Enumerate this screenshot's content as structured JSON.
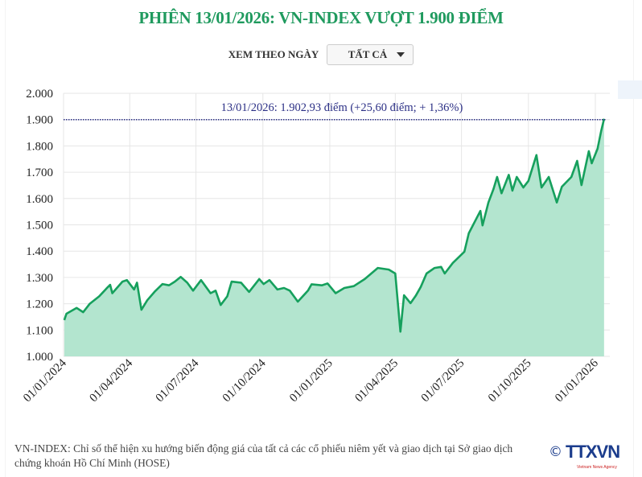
{
  "title": "PHIÊN 13/01/2026: VN-INDEX VƯỢT 1.900 ĐIỂM",
  "filter": {
    "label": "XEM THEO NGÀY",
    "selected": "TẤT CẢ"
  },
  "footnote": "VN-INDEX: Chỉ số thể hiện xu hướng biến động giá của tất cả các cổ phiếu niêm yết và giao dịch tại Sở giao dịch chứng khoán Hồ Chí Minh (HOSE)",
  "logo": {
    "copyright": "©",
    "text": "TTXVN",
    "tagline": "Vietnam News Agency"
  },
  "colors": {
    "title": "#1f9a5e",
    "line": "#16a05d",
    "fill": "#b3e5cf",
    "reference": "#2b2f85"
  },
  "chart_data": {
    "type": "area",
    "ylim": [
      1000,
      2000
    ],
    "yticks": [
      "1.000",
      "1.100",
      "1.200",
      "1.300",
      "1.400",
      "1.500",
      "1.600",
      "1.700",
      "1.800",
      "1.900",
      "2.000"
    ],
    "ytick_values": [
      1000,
      1100,
      1200,
      1300,
      1400,
      1500,
      1600,
      1700,
      1800,
      1900,
      2000
    ],
    "xlim": [
      "2024-01-01",
      "2026-01-01"
    ],
    "xticks": [
      "01/01/2024",
      "01/04/2024",
      "01/07/2024",
      "01/10/2024",
      "01/01/2025",
      "01/04/2025",
      "01/07/2025",
      "01/10/2025",
      "01/01/2026"
    ],
    "xtick_dates": [
      "2024-01-01",
      "2024-04-01",
      "2024-07-01",
      "2024-10-01",
      "2025-01-01",
      "2025-04-01",
      "2025-07-01",
      "2025-10-01",
      "2026-01-01"
    ],
    "grid": true,
    "reference_line": {
      "value": 1900,
      "label": "13/01/2026: 1.902,93 điểm (+25,60 điểm; + 1,36%)"
    },
    "series": [
      {
        "points": [
          [
            "2024-01-02",
            1138
          ],
          [
            "2024-01-05",
            1162
          ],
          [
            "2024-01-19",
            1184
          ],
          [
            "2024-01-28",
            1168
          ],
          [
            "2024-02-06",
            1200
          ],
          [
            "2024-02-19",
            1228
          ],
          [
            "2024-02-29",
            1258
          ],
          [
            "2024-03-05",
            1272
          ],
          [
            "2024-03-08",
            1240
          ],
          [
            "2024-03-22",
            1284
          ],
          [
            "2024-03-28",
            1290
          ],
          [
            "2024-04-07",
            1254
          ],
          [
            "2024-04-11",
            1280
          ],
          [
            "2024-04-17",
            1177
          ],
          [
            "2024-04-25",
            1213
          ],
          [
            "2024-05-06",
            1248
          ],
          [
            "2024-05-16",
            1275
          ],
          [
            "2024-05-25",
            1270
          ],
          [
            "2024-06-02",
            1284
          ],
          [
            "2024-06-10",
            1302
          ],
          [
            "2024-06-19",
            1280
          ],
          [
            "2024-06-27",
            1250
          ],
          [
            "2024-07-08",
            1290
          ],
          [
            "2024-07-21",
            1240
          ],
          [
            "2024-07-28",
            1250
          ],
          [
            "2024-08-04",
            1195
          ],
          [
            "2024-08-13",
            1228
          ],
          [
            "2024-08-19",
            1284
          ],
          [
            "2024-09-01",
            1280
          ],
          [
            "2024-09-12",
            1245
          ],
          [
            "2024-09-26",
            1294
          ],
          [
            "2024-10-02",
            1275
          ],
          [
            "2024-10-10",
            1290
          ],
          [
            "2024-10-21",
            1254
          ],
          [
            "2024-10-30",
            1260
          ],
          [
            "2024-11-07",
            1250
          ],
          [
            "2024-11-18",
            1208
          ],
          [
            "2024-12-02",
            1250
          ],
          [
            "2024-12-07",
            1274
          ],
          [
            "2024-12-21",
            1270
          ],
          [
            "2024-12-29",
            1277
          ],
          [
            "2025-01-09",
            1240
          ],
          [
            "2025-01-21",
            1260
          ],
          [
            "2025-02-03",
            1267
          ],
          [
            "2025-02-18",
            1294
          ],
          [
            "2025-03-08",
            1336
          ],
          [
            "2025-03-23",
            1330
          ],
          [
            "2025-04-01",
            1315
          ],
          [
            "2025-04-08",
            1094
          ],
          [
            "2025-04-13",
            1232
          ],
          [
            "2025-04-22",
            1202
          ],
          [
            "2025-04-29",
            1230
          ],
          [
            "2025-05-06",
            1264
          ],
          [
            "2025-05-14",
            1315
          ],
          [
            "2025-05-25",
            1336
          ],
          [
            "2025-06-03",
            1340
          ],
          [
            "2025-06-08",
            1315
          ],
          [
            "2025-06-19",
            1355
          ],
          [
            "2025-07-05",
            1398
          ],
          [
            "2025-07-11",
            1468
          ],
          [
            "2025-07-27",
            1553
          ],
          [
            "2025-07-30",
            1498
          ],
          [
            "2025-08-07",
            1585
          ],
          [
            "2025-08-14",
            1636
          ],
          [
            "2025-08-19",
            1682
          ],
          [
            "2025-08-25",
            1620
          ],
          [
            "2025-09-04",
            1690
          ],
          [
            "2025-09-09",
            1630
          ],
          [
            "2025-09-15",
            1682
          ],
          [
            "2025-09-24",
            1642
          ],
          [
            "2025-10-01",
            1667
          ],
          [
            "2025-10-12",
            1765
          ],
          [
            "2025-10-19",
            1642
          ],
          [
            "2025-10-29",
            1682
          ],
          [
            "2025-11-09",
            1585
          ],
          [
            "2025-11-16",
            1645
          ],
          [
            "2025-11-29",
            1682
          ],
          [
            "2025-12-07",
            1743
          ],
          [
            "2025-12-13",
            1651
          ],
          [
            "2025-12-23",
            1780
          ],
          [
            "2025-12-27",
            1734
          ],
          [
            "2026-01-04",
            1789
          ],
          [
            "2026-01-09",
            1856
          ],
          [
            "2026-01-13",
            1902.93
          ]
        ]
      }
    ]
  }
}
